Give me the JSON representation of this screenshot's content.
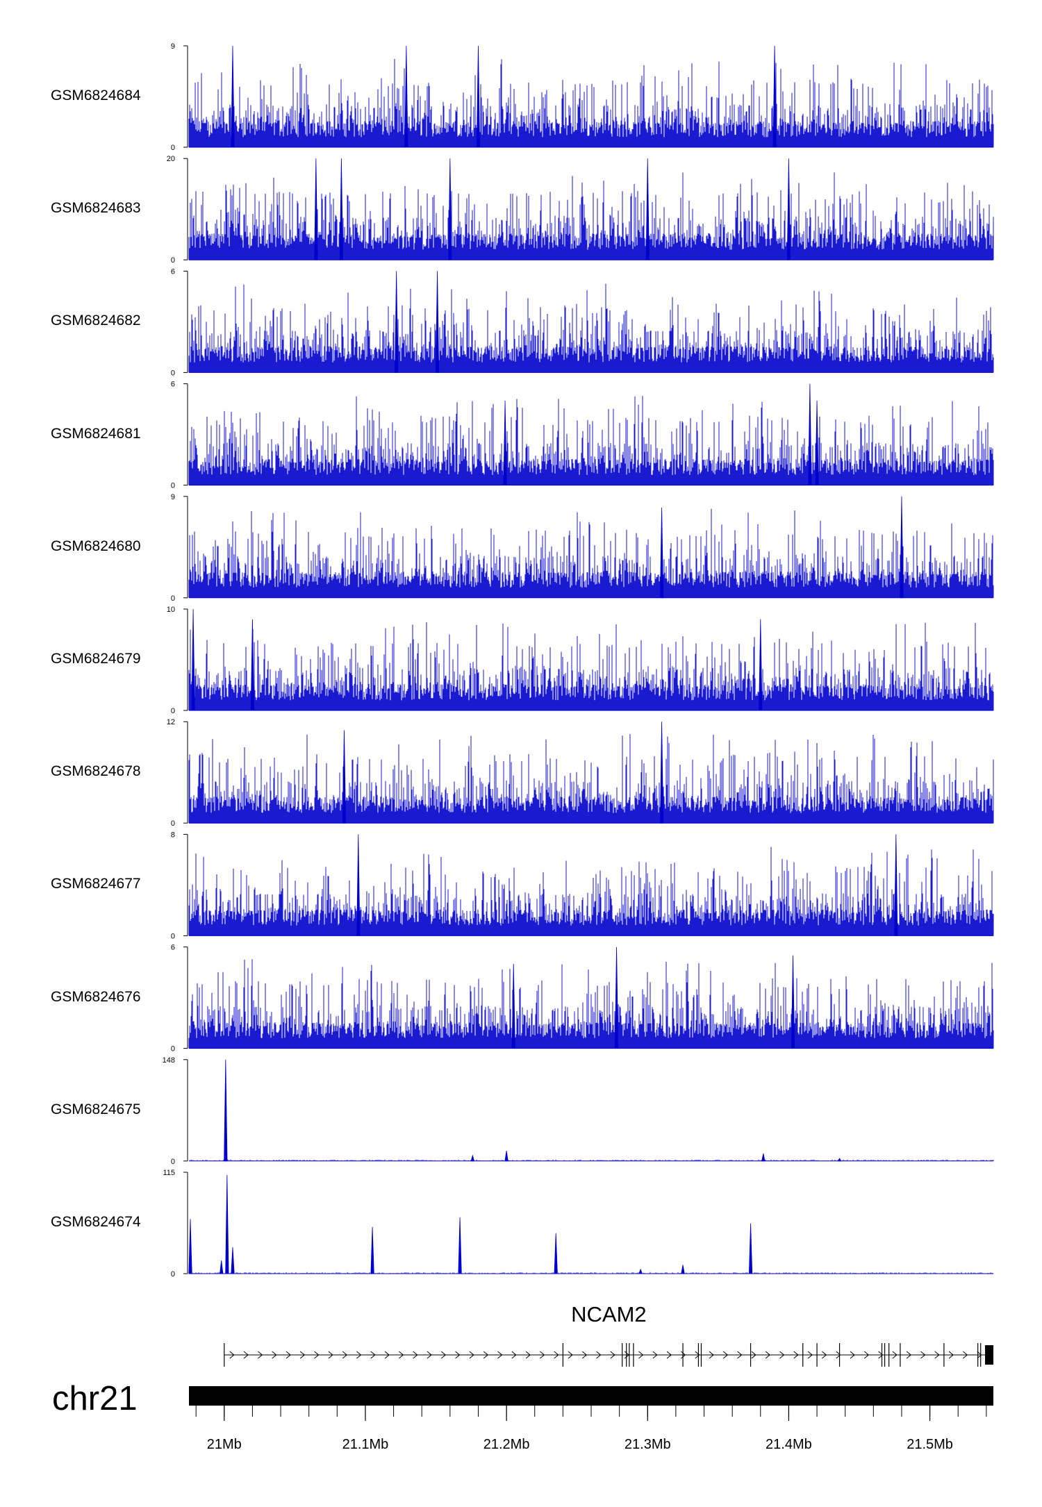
{
  "chart_data": {
    "type": "area",
    "chromosome": "chr21",
    "x_range_mb": [
      20.975,
      21.545
    ],
    "x_axis": {
      "ticks": [
        {
          "value": 21.0,
          "label": "21Mb"
        },
        {
          "value": 21.1,
          "label": "21.1Mb"
        },
        {
          "value": 21.2,
          "label": "21.2Mb"
        },
        {
          "value": 21.3,
          "label": "21.3Mb"
        },
        {
          "value": 21.4,
          "label": "21.4Mb"
        },
        {
          "value": 21.5,
          "label": "21.5Mb"
        }
      ],
      "minor_tick_step_mb": 0.02
    },
    "series_color": "#0000cc",
    "tracks": [
      {
        "name": "GSM6824684",
        "ymin_label": "0",
        "ymax_label": "9",
        "ymax": 9,
        "profile": "noise",
        "spikes": [
          {
            "x": 21.006,
            "y": 9
          },
          {
            "x": 21.129,
            "y": 9
          },
          {
            "x": 21.18,
            "y": 9
          },
          {
            "x": 21.39,
            "y": 9
          }
        ]
      },
      {
        "name": "GSM6824683",
        "ymin_label": "0",
        "ymax_label": "20",
        "ymax": 20,
        "profile": "noise",
        "spikes": [
          {
            "x": 21.065,
            "y": 20
          },
          {
            "x": 21.083,
            "y": 20
          },
          {
            "x": 21.16,
            "y": 20
          },
          {
            "x": 21.3,
            "y": 20
          },
          {
            "x": 21.4,
            "y": 20
          }
        ]
      },
      {
        "name": "GSM6824682",
        "ymin_label": "0",
        "ymax_label": "6",
        "ymax": 6,
        "profile": "noise",
        "spikes": [
          {
            "x": 21.122,
            "y": 6
          },
          {
            "x": 21.151,
            "y": 6
          }
        ]
      },
      {
        "name": "GSM6824681",
        "ymin_label": "0",
        "ymax_label": "6",
        "ymax": 6,
        "profile": "noise",
        "spikes": [
          {
            "x": 21.199,
            "y": 5
          },
          {
            "x": 21.415,
            "y": 6
          },
          {
            "x": 21.42,
            "y": 5
          }
        ]
      },
      {
        "name": "GSM6824680",
        "ymin_label": "0",
        "ymax_label": "9",
        "ymax": 9,
        "profile": "noise",
        "spikes": [
          {
            "x": 21.48,
            "y": 9
          },
          {
            "x": 21.31,
            "y": 8
          }
        ]
      },
      {
        "name": "GSM6824679",
        "ymin_label": "0",
        "ymax_label": "10",
        "ymax": 10,
        "profile": "noise",
        "spikes": [
          {
            "x": 20.978,
            "y": 10
          },
          {
            "x": 21.02,
            "y": 9
          },
          {
            "x": 21.38,
            "y": 9
          }
        ]
      },
      {
        "name": "GSM6824678",
        "ymin_label": "0",
        "ymax_label": "12",
        "ymax": 12,
        "profile": "noise",
        "spikes": [
          {
            "x": 21.085,
            "y": 11
          },
          {
            "x": 21.31,
            "y": 12
          }
        ]
      },
      {
        "name": "GSM6824677",
        "ymin_label": "0",
        "ymax_label": "8",
        "ymax": 8,
        "profile": "noise",
        "spikes": [
          {
            "x": 21.095,
            "y": 8
          },
          {
            "x": 21.476,
            "y": 8
          }
        ]
      },
      {
        "name": "GSM6824676",
        "ymin_label": "0",
        "ymax_label": "6",
        "ymax": 6,
        "profile": "noise",
        "spikes": [
          {
            "x": 21.278,
            "y": 6
          },
          {
            "x": 21.403,
            "y": 5.5
          },
          {
            "x": 21.205,
            "y": 5
          }
        ]
      },
      {
        "name": "GSM6824675",
        "ymin_label": "0",
        "ymax_label": "148",
        "ymax": 148,
        "profile": "flat",
        "spikes": [
          {
            "x": 21.001,
            "y": 148
          },
          {
            "x": 21.176,
            "y": 8
          },
          {
            "x": 21.2,
            "y": 15
          },
          {
            "x": 21.382,
            "y": 11
          },
          {
            "x": 21.436,
            "y": 4
          }
        ]
      },
      {
        "name": "GSM6824674",
        "ymin_label": "0",
        "ymax_label": "115",
        "ymax": 115,
        "profile": "flat",
        "spikes": [
          {
            "x": 20.976,
            "y": 62
          },
          {
            "x": 20.998,
            "y": 15
          },
          {
            "x": 21.002,
            "y": 112
          },
          {
            "x": 21.006,
            "y": 30
          },
          {
            "x": 21.105,
            "y": 53
          },
          {
            "x": 21.167,
            "y": 64
          },
          {
            "x": 21.235,
            "y": 46
          },
          {
            "x": 21.295,
            "y": 5
          },
          {
            "x": 21.325,
            "y": 10
          },
          {
            "x": 21.373,
            "y": 57
          }
        ]
      }
    ],
    "gene": {
      "name": "NCAM2",
      "strand": "+",
      "start_mb": 21.0,
      "end_mb": 21.545,
      "exons_mb": [
        21.0,
        21.24,
        21.282,
        21.285,
        21.287,
        21.29,
        21.325,
        21.336,
        21.338,
        21.373,
        21.41,
        21.42,
        21.436,
        21.466,
        21.468,
        21.471,
        21.479,
        21.51,
        21.534,
        21.536
      ]
    }
  }
}
